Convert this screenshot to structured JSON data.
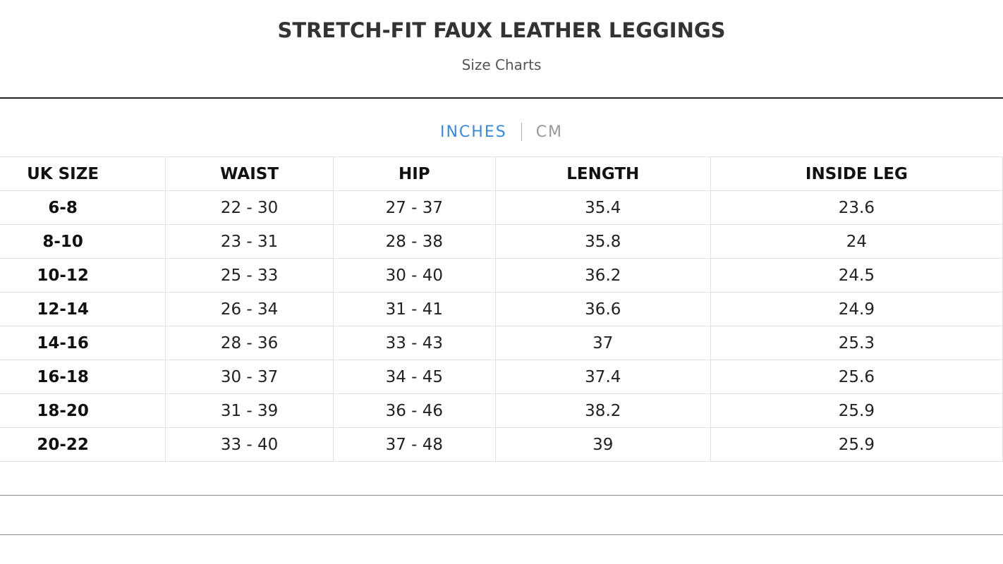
{
  "header": {
    "title": "STRETCH-FIT FAUX LEATHER LEGGINGS",
    "subtitle": "Size Charts"
  },
  "tabs": [
    "INCHES",
    "CM"
  ],
  "table": {
    "columns": [
      "UK SIZE",
      "WAIST",
      "HIP",
      "LENGTH",
      "INSIDE LEG"
    ],
    "rows": [
      [
        "6-8",
        "22 - 30",
        "27 - 37",
        "35.4",
        "23.6"
      ],
      [
        "8-10",
        "23 - 31",
        "28 - 38",
        "35.8",
        "24"
      ],
      [
        "10-12",
        "25 - 33",
        "30 - 40",
        "36.2",
        "24.5"
      ],
      [
        "12-14",
        "26 - 34",
        "31 - 41",
        "36.6",
        "24.9"
      ],
      [
        "14-16",
        "28 - 36",
        "33 - 43",
        "37",
        "25.3"
      ],
      [
        "16-18",
        "30 - 37",
        "34 - 45",
        "37.4",
        "25.6"
      ],
      [
        "18-20",
        "31 - 39",
        "36 - 46",
        "38.2",
        "25.9"
      ],
      [
        "20-22",
        "33 - 40",
        "37 - 48",
        "39",
        "25.9"
      ]
    ]
  }
}
